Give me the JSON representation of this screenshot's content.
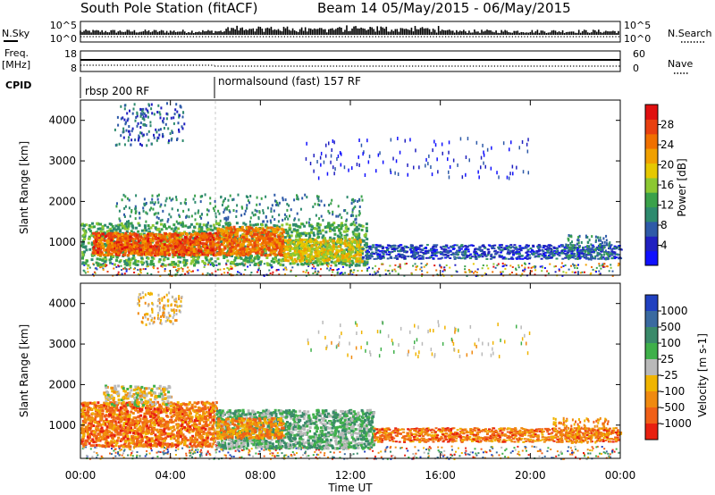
{
  "header": {
    "station": "South Pole Station (fitACF)",
    "beam_date": "Beam 14 05/May/2015 - 06/May/2015"
  },
  "top_panels": {
    "nsky_label": "N.Sky",
    "nsky_ticks": [
      "10^5",
      "10^0"
    ],
    "nsearch_label": "N.Search",
    "nsearch_ticks": [
      "10^5",
      "10^0"
    ],
    "freq_label_line1": "Freq.",
    "freq_label_line2": "[MHz]",
    "freq_ticks": [
      "18",
      "8"
    ],
    "nave_label": "Nave",
    "nave_ticks": [
      "60",
      "0"
    ],
    "cpid_label": "CPID",
    "cpid_segments": [
      {
        "label": "rbsp 200 RF",
        "start_hour": 0
      },
      {
        "label": "normalsound (fast) 157 RF",
        "start_hour": 6
      }
    ]
  },
  "chart_data": [
    {
      "type": "heatmap",
      "title": "Power",
      "ylabel": "Slant Range [km]",
      "ylim": [
        180,
        4500
      ],
      "yticks": [
        "1000",
        "2000",
        "3000",
        "4000"
      ],
      "colorbar_label": "Power [dB]",
      "colorbar_ticks": [
        "4",
        "8",
        "12",
        "16",
        "20",
        "24",
        "28"
      ],
      "colorbar_colors": [
        "#1010ff",
        "#2020c0",
        "#2e5aa8",
        "#2e8a6e",
        "#3aa14a",
        "#8cc832",
        "#e6c800",
        "#f0a000",
        "#f07000",
        "#e84010",
        "#e01010"
      ],
      "regions": [
        {
          "x": [
            0.0,
            12.7
          ],
          "y": [
            550,
            1450
          ],
          "value": 24
        },
        {
          "x": [
            12.7,
            24.0
          ],
          "y": [
            550,
            1000
          ],
          "value": 8
        },
        {
          "x": [
            1.5,
            12.5
          ],
          "y": [
            1500,
            2200
          ],
          "value": 12
        },
        {
          "x": [
            1.5,
            4.5
          ],
          "y": [
            3300,
            4400
          ],
          "value": 8
        },
        {
          "x": [
            10.0,
            20.0
          ],
          "y": [
            2800,
            3600
          ],
          "value": 6
        }
      ]
    },
    {
      "type": "heatmap",
      "title": "Velocity",
      "ylabel": "Slant Range [km]",
      "ylim": [
        180,
        4500
      ],
      "yticks": [
        "1000",
        "2000",
        "3000",
        "4000"
      ],
      "colorbar_label": "Velocity [m s-1]",
      "colorbar_ticks": [
        "1000",
        "500",
        "100",
        "25",
        "-25",
        "-100",
        "-500",
        "-1000"
      ],
      "colorbar_colors": [
        "#2040c0",
        "#3a6aa0",
        "#3a8a6a",
        "#3fb04a",
        "#b9b9b9",
        "#f0b400",
        "#f08a10",
        "#f06018",
        "#e82010"
      ],
      "regions": [
        {
          "x": [
            0.0,
            6.0
          ],
          "y": [
            550,
            1500
          ],
          "value": -300
        },
        {
          "x": [
            6.0,
            13.0
          ],
          "y": [
            550,
            1300
          ],
          "value": 200
        },
        {
          "x": [
            13.0,
            24.0
          ],
          "y": [
            550,
            1000
          ],
          "value": -400
        }
      ]
    }
  ],
  "x_axis": {
    "label": "Time UT",
    "ticks": [
      "00:00",
      "04:00",
      "08:00",
      "12:00",
      "16:00",
      "20:00",
      "00:00"
    ],
    "range_hours": [
      0,
      24
    ]
  }
}
